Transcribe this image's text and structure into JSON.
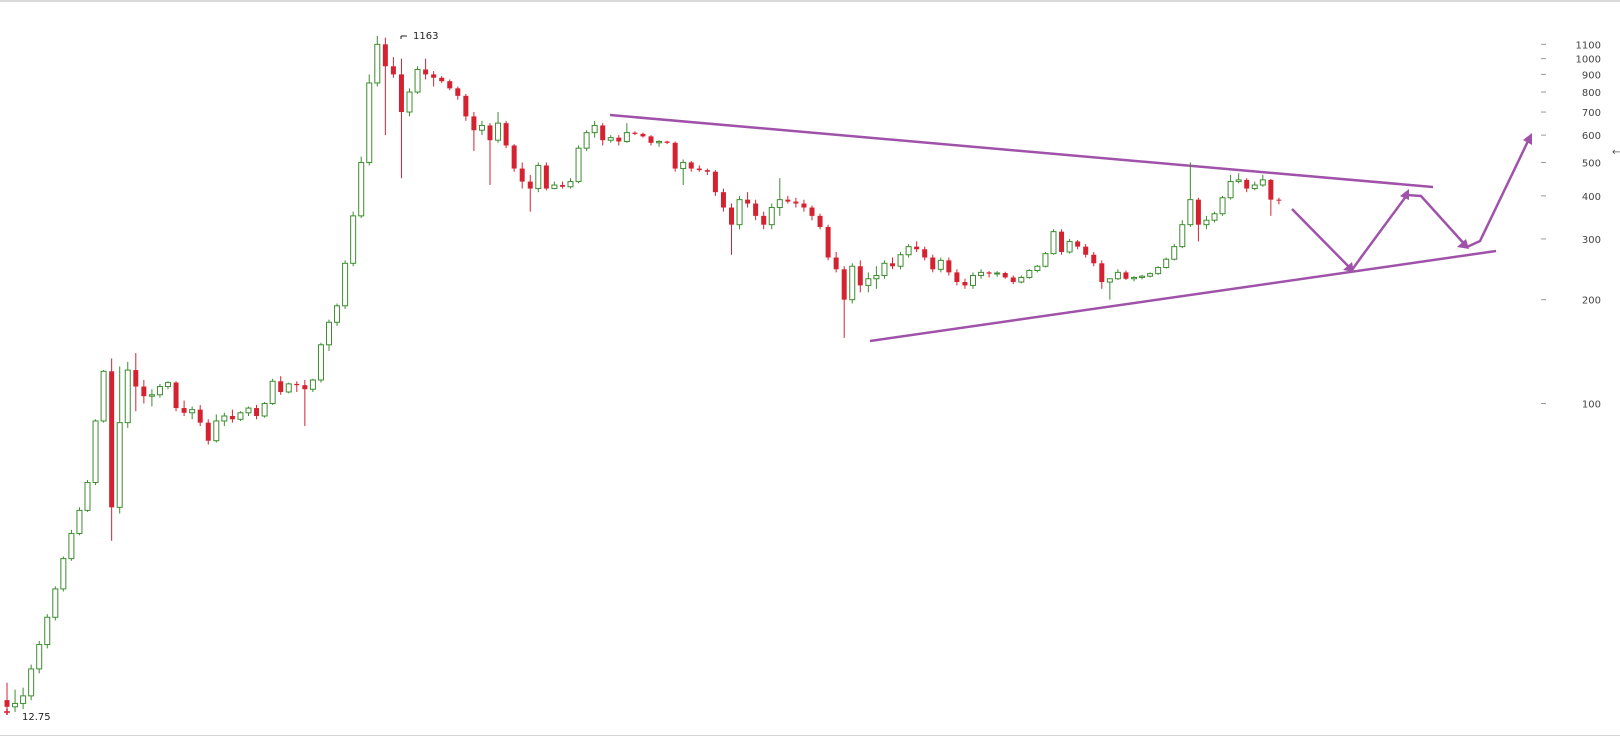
{
  "chart_data": {
    "type": "candlestick",
    "y_scale": "log",
    "ylim": [
      12.5,
      1300
    ],
    "y_ticks": [
      100,
      200,
      300,
      400,
      500,
      600,
      700,
      800,
      900,
      1000,
      1100
    ],
    "annotations": {
      "high_label": "1163",
      "low_label": "12.75",
      "right_edge_mark": "←"
    },
    "colors": {
      "up": "#3c8d2f",
      "down": "#d42231",
      "pattern": "#a052aa",
      "axis_text": "#444444"
    },
    "candles": [
      [
        13.8,
        15.5,
        12.8,
        13.2
      ],
      [
        13.2,
        14.8,
        12.75,
        13.5
      ],
      [
        13.5,
        15.0,
        13.0,
        14.2
      ],
      [
        14.2,
        17.5,
        13.8,
        17.0
      ],
      [
        17.0,
        20.5,
        16.5,
        20.0
      ],
      [
        20.0,
        24.5,
        19.5,
        24.0
      ],
      [
        24.0,
        29.5,
        23.5,
        29.0
      ],
      [
        29.0,
        36.0,
        28.5,
        35.5
      ],
      [
        35.5,
        43.0,
        35.0,
        42.0
      ],
      [
        42.0,
        50.0,
        41.5,
        49.0
      ],
      [
        49.0,
        60.0,
        48.5,
        59.0
      ],
      [
        59.0,
        90.0,
        58.0,
        89.0
      ],
      [
        89.0,
        125.0,
        88.0,
        124.0
      ],
      [
        124.0,
        135.0,
        40.0,
        50.0
      ],
      [
        50.0,
        128.0,
        48.0,
        88.0
      ],
      [
        88.0,
        132.0,
        85.0,
        125.0
      ],
      [
        125.0,
        140.0,
        95.0,
        112.0
      ],
      [
        112.0,
        117.0,
        100.0,
        105.0
      ],
      [
        105.0,
        110.0,
        98.0,
        106.0
      ],
      [
        106.0,
        114.0,
        104.0,
        112.0
      ],
      [
        112.0,
        116.0,
        110.0,
        115.0
      ],
      [
        115.0,
        116.0,
        95.0,
        97.0
      ],
      [
        97.0,
        102.0,
        92.0,
        94.0
      ],
      [
        94.0,
        98.0,
        90.0,
        96.0
      ],
      [
        96.0,
        99.0,
        86.0,
        88.0
      ],
      [
        88.0,
        90.0,
        76.0,
        78.0
      ],
      [
        78.0,
        93.0,
        77.0,
        89.0
      ],
      [
        89.0,
        94.0,
        86.0,
        92.0
      ],
      [
        92.0,
        96.0,
        88.0,
        90.0
      ],
      [
        90.0,
        95.0,
        89.0,
        94.0
      ],
      [
        94.0,
        98.0,
        92.0,
        97.0
      ],
      [
        97.0,
        99.0,
        90.0,
        92.0
      ],
      [
        92.0,
        101.0,
        91.0,
        100.0
      ],
      [
        100.0,
        118.0,
        99.0,
        116.0
      ],
      [
        116.0,
        120.0,
        106.0,
        108.0
      ],
      [
        108.0,
        115.0,
        107.0,
        114.0
      ],
      [
        114.0,
        116.0,
        108.0,
        113.0
      ],
      [
        113.0,
        117.0,
        86.0,
        110.0
      ],
      [
        110.0,
        118.0,
        108.0,
        117.0
      ],
      [
        117.0,
        150.0,
        115.0,
        148.0
      ],
      [
        148.0,
        175.0,
        142.0,
        172.0
      ],
      [
        172.0,
        195.0,
        168.0,
        192.0
      ],
      [
        192.0,
        260.0,
        188.0,
        255.0
      ],
      [
        255.0,
        360.0,
        250.0,
        350.0
      ],
      [
        350.0,
        520.0,
        345.0,
        500.0
      ],
      [
        500.0,
        900.0,
        490.0,
        850.0
      ],
      [
        850.0,
        1163.0,
        830.0,
        1100.0
      ],
      [
        1100.0,
        1150.0,
        600.0,
        950.0
      ],
      [
        950.0,
        1010.0,
        880.0,
        900.0
      ],
      [
        900.0,
        1000.0,
        450.0,
        700.0
      ],
      [
        700.0,
        820.0,
        680.0,
        800.0
      ],
      [
        800.0,
        950.0,
        790.0,
        930.0
      ],
      [
        930.0,
        1000.0,
        870.0,
        900.0
      ],
      [
        900.0,
        920.0,
        830.0,
        880.0
      ],
      [
        880.0,
        890.0,
        850.0,
        860.0
      ],
      [
        860.0,
        870.0,
        810.0,
        820.0
      ],
      [
        820.0,
        830.0,
        760.0,
        780.0
      ],
      [
        780.0,
        790.0,
        660.0,
        680.0
      ],
      [
        680.0,
        700.0,
        540.0,
        620.0
      ],
      [
        620.0,
        660.0,
        600.0,
        640.0
      ],
      [
        640.0,
        650.0,
        430.0,
        580.0
      ],
      [
        580.0,
        700.0,
        570.0,
        650.0
      ],
      [
        650.0,
        660.0,
        550.0,
        560.0
      ],
      [
        560.0,
        565.0,
        470.0,
        480.0
      ],
      [
        480.0,
        500.0,
        420.0,
        440.0
      ],
      [
        440.0,
        460.0,
        360.0,
        420.0
      ],
      [
        420.0,
        500.0,
        410.0,
        490.0
      ],
      [
        490.0,
        500.0,
        415.0,
        420.0
      ],
      [
        420.0,
        440.0,
        418.0,
        430.0
      ],
      [
        430.0,
        440.0,
        420.0,
        425.0
      ],
      [
        425.0,
        450.0,
        420.0,
        440.0
      ],
      [
        440.0,
        560.0,
        435.0,
        550.0
      ],
      [
        550.0,
        620.0,
        540.0,
        610.0
      ],
      [
        610.0,
        660.0,
        590.0,
        640.0
      ],
      [
        640.0,
        650.0,
        560.0,
        580.0
      ],
      [
        580.0,
        600.0,
        570.0,
        590.0
      ],
      [
        590.0,
        600.0,
        560.0,
        575.0
      ],
      [
        575.0,
        650.0,
        570.0,
        610.0
      ],
      [
        610.0,
        615.0,
        600.0,
        605.0
      ],
      [
        605.0,
        610.0,
        590.0,
        595.0
      ],
      [
        595.0,
        600.0,
        560.0,
        570.0
      ],
      [
        570.0,
        580.0,
        555.0,
        575.0
      ],
      [
        575.0,
        578.0,
        565.0,
        570.0
      ],
      [
        570.0,
        575.0,
        470.0,
        480.0
      ],
      [
        480.0,
        510.0,
        430.0,
        500.0
      ],
      [
        500.0,
        505.0,
        470.0,
        480.0
      ],
      [
        480.0,
        490.0,
        470.0,
        475.0
      ],
      [
        475.0,
        480.0,
        460.0,
        470.0
      ],
      [
        470.0,
        475.0,
        400.0,
        410.0
      ],
      [
        410.0,
        420.0,
        360.0,
        370.0
      ],
      [
        370.0,
        380.0,
        270.0,
        330.0
      ],
      [
        330.0,
        400.0,
        320.0,
        390.0
      ],
      [
        390.0,
        410.0,
        370.0,
        380.0
      ],
      [
        380.0,
        390.0,
        340.0,
        350.0
      ],
      [
        350.0,
        360.0,
        320.0,
        330.0
      ],
      [
        330.0,
        380.0,
        320.0,
        370.0
      ],
      [
        370.0,
        450.0,
        350.0,
        390.0
      ],
      [
        390.0,
        400.0,
        380.0,
        385.0
      ],
      [
        385.0,
        395.0,
        370.0,
        380.0
      ],
      [
        380.0,
        390.0,
        360.0,
        370.0
      ],
      [
        370.0,
        375.0,
        340.0,
        350.0
      ],
      [
        350.0,
        355.0,
        320.0,
        325.0
      ],
      [
        325.0,
        330.0,
        260.0,
        265.0
      ],
      [
        265.0,
        275.0,
        240.0,
        245.0
      ],
      [
        245.0,
        250.0,
        155.0,
        200.0
      ],
      [
        200.0,
        255.0,
        195.0,
        250.0
      ],
      [
        250.0,
        260.0,
        210.0,
        220.0
      ],
      [
        220.0,
        240.0,
        210.0,
        230.0
      ],
      [
        230.0,
        250.0,
        215.0,
        235.0
      ],
      [
        235.0,
        260.0,
        230.0,
        255.0
      ],
      [
        255.0,
        265.0,
        245.0,
        250.0
      ],
      [
        250.0,
        275.0,
        245.0,
        270.0
      ],
      [
        270.0,
        290.0,
        265.0,
        285.0
      ],
      [
        285.0,
        295.0,
        275.0,
        280.0
      ],
      [
        280.0,
        285.0,
        260.0,
        265.0
      ],
      [
        265.0,
        270.0,
        240.0,
        245.0
      ],
      [
        245.0,
        265.0,
        240.0,
        260.0
      ],
      [
        260.0,
        265.0,
        235.0,
        240.0
      ],
      [
        240.0,
        245.0,
        220.0,
        225.0
      ],
      [
        225.0,
        230.0,
        215.0,
        220.0
      ],
      [
        220.0,
        240.0,
        215.0,
        235.0
      ],
      [
        235.0,
        245.0,
        230.0,
        240.0
      ],
      [
        240.0,
        242.0,
        232.0,
        238.0
      ],
      [
        238.0,
        242.0,
        233.0,
        239.0
      ],
      [
        239.0,
        241.0,
        230.0,
        232.0
      ],
      [
        232.0,
        235.0,
        222.0,
        225.0
      ],
      [
        225.0,
        235.0,
        223.0,
        232.0
      ],
      [
        232.0,
        245.0,
        230.0,
        243.0
      ],
      [
        243.0,
        252.0,
        240.0,
        250.0
      ],
      [
        250.0,
        275.0,
        248.0,
        272.0
      ],
      [
        272.0,
        320.0,
        270.0,
        315.0
      ],
      [
        315.0,
        320.0,
        270.0,
        275.0
      ],
      [
        275.0,
        300.0,
        272.0,
        295.0
      ],
      [
        295.0,
        298.0,
        280.0,
        285.0
      ],
      [
        285.0,
        290.0,
        265.0,
        270.0
      ],
      [
        270.0,
        275.0,
        250.0,
        255.0
      ],
      [
        255.0,
        260.0,
        215.0,
        225.0
      ],
      [
        225.0,
        230.0,
        200.0,
        230.0
      ],
      [
        230.0,
        245.0,
        228.0,
        240.0
      ],
      [
        240.0,
        243.0,
        228.0,
        230.0
      ],
      [
        230.0,
        234.0,
        226.0,
        232.0
      ],
      [
        232.0,
        236.0,
        229.0,
        234.0
      ],
      [
        234.0,
        240.0,
        232.0,
        238.0
      ],
      [
        238.0,
        250.0,
        236.0,
        248.0
      ],
      [
        248.0,
        265.0,
        246.0,
        262.0
      ],
      [
        262.0,
        290.0,
        260.0,
        285.0
      ],
      [
        285.0,
        340.0,
        282.0,
        330.0
      ],
      [
        330.0,
        500.0,
        325.0,
        390.0
      ],
      [
        390.0,
        395.0,
        295.0,
        330.0
      ],
      [
        330.0,
        350.0,
        320.0,
        340.0
      ],
      [
        340.0,
        360.0,
        335.0,
        355.0
      ],
      [
        355.0,
        400.0,
        350.0,
        395.0
      ],
      [
        395.0,
        460.0,
        390.0,
        440.0
      ],
      [
        440.0,
        465.0,
        435.0,
        445.0
      ],
      [
        445.0,
        450.0,
        410.0,
        420.0
      ],
      [
        420.0,
        440.0,
        415.0,
        430.0
      ],
      [
        430.0,
        460.0,
        425.0,
        445.0
      ],
      [
        445.0,
        448.0,
        350.0,
        390.0
      ],
      [
        390.0,
        395.0,
        378.0,
        388.0
      ]
    ]
  }
}
